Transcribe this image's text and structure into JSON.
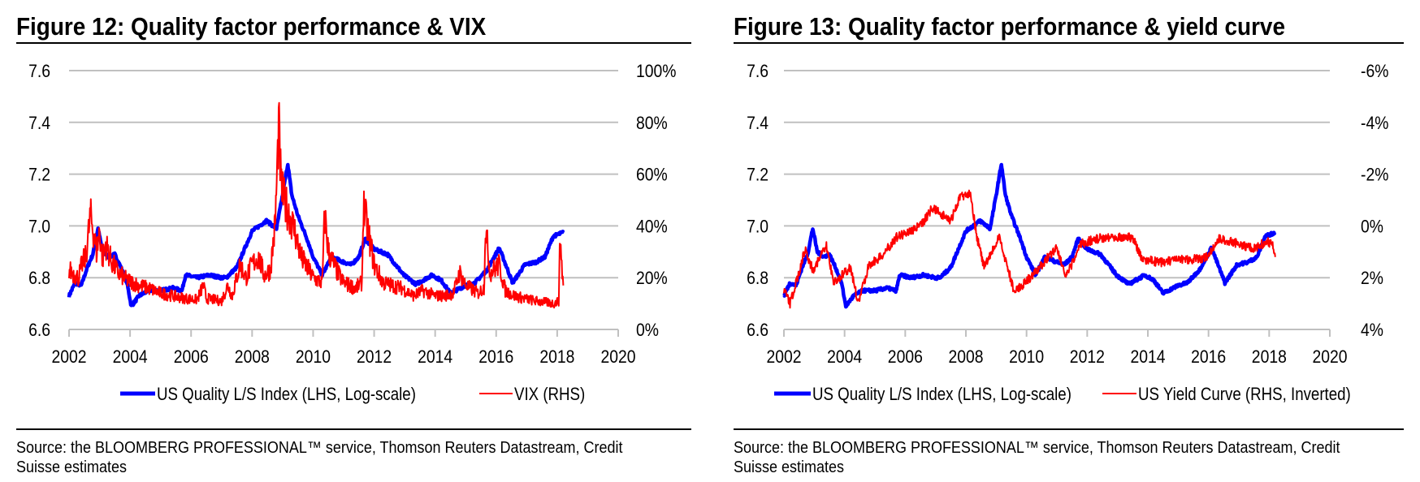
{
  "colors": {
    "quality": "#0000ff",
    "red_series": "#ff0000",
    "grid": "#c0c0c0"
  },
  "chart_data": [
    {
      "type": "line",
      "title": "Figure 12: Quality factor performance & VIX",
      "x_ticks": [
        "2002",
        "2004",
        "2006",
        "2008",
        "2010",
        "2012",
        "2014",
        "2016",
        "2018",
        "2020"
      ],
      "xlim": [
        2002,
        2020
      ],
      "y_left": {
        "ticks": [
          "6.6",
          "6.8",
          "7.0",
          "7.2",
          "7.4",
          "7.6"
        ],
        "lim": [
          6.6,
          7.6
        ],
        "inverted": false
      },
      "y_right": {
        "ticks": [
          "0%",
          "20%",
          "40%",
          "60%",
          "80%",
          "100%"
        ],
        "lim": [
          0,
          100
        ],
        "inverted": false
      },
      "legend_placement": "bottom",
      "series": [
        {
          "name": "US Quality L/S Index (LHS, Log-scale)",
          "axis": "left",
          "color": "#0000ff",
          "x": [
            2002.0,
            2002.2,
            2002.4,
            2002.6,
            2002.78,
            2002.95,
            2003.1,
            2003.3,
            2003.5,
            2003.7,
            2003.9,
            2004.04,
            2004.3,
            2004.6,
            2005.0,
            2005.4,
            2005.7,
            2005.82,
            2006.2,
            2006.6,
            2007.0,
            2007.15,
            2007.5,
            2008.0,
            2008.47,
            2008.8,
            2009.0,
            2009.17,
            2009.3,
            2009.5,
            2009.8,
            2010.0,
            2010.3,
            2010.6,
            2011.0,
            2011.25,
            2011.5,
            2011.7,
            2012.0,
            2012.44,
            2012.97,
            2013.37,
            2013.9,
            2014.2,
            2014.5,
            2015.0,
            2015.3,
            2015.7,
            2016.1,
            2016.54,
            2016.94,
            2017.3,
            2017.6,
            2017.87,
            2018.2
          ],
          "y": [
            6.73,
            6.78,
            6.77,
            6.84,
            6.89,
            6.99,
            6.9,
            6.88,
            6.89,
            6.84,
            6.78,
            6.69,
            6.73,
            6.75,
            6.75,
            6.76,
            6.75,
            6.81,
            6.8,
            6.81,
            6.8,
            6.8,
            6.84,
            6.98,
            7.02,
            6.99,
            7.12,
            7.24,
            7.12,
            7.04,
            6.95,
            6.88,
            6.81,
            6.88,
            6.86,
            6.85,
            6.88,
            6.95,
            6.91,
            6.89,
            6.81,
            6.775,
            6.81,
            6.79,
            6.74,
            6.77,
            6.78,
            6.83,
            6.915,
            6.78,
            6.85,
            6.86,
            6.88,
            6.96,
            6.975
          ]
        },
        {
          "name": "VIX (RHS)",
          "axis": "right",
          "color": "#ff0000",
          "x": [
            2002.0,
            2002.3,
            2002.45,
            2002.55,
            2002.7,
            2002.8,
            2002.9,
            2003.0,
            2003.1,
            2003.2,
            2003.4,
            2003.6,
            2003.9,
            2004.3,
            2004.6,
            2005.0,
            2005.4,
            2005.8,
            2006.2,
            2006.4,
            2006.5,
            2007.0,
            2007.2,
            2007.35,
            2007.6,
            2007.8,
            2008.0,
            2008.2,
            2008.4,
            2008.6,
            2008.75,
            2008.82,
            2008.87,
            2008.95,
            2009.05,
            2009.2,
            2009.4,
            2009.6,
            2009.8,
            2010.0,
            2010.3,
            2010.38,
            2010.5,
            2010.8,
            2011.0,
            2011.4,
            2011.6,
            2011.65,
            2011.8,
            2012.0,
            2012.3,
            2012.6,
            2012.9,
            2013.3,
            2013.6,
            2014.0,
            2014.3,
            2014.6,
            2014.8,
            2015.0,
            2015.4,
            2015.6,
            2015.65,
            2015.8,
            2016.1,
            2016.3,
            2016.6,
            2016.9,
            2017.3,
            2017.6,
            2017.9,
            2018.05,
            2018.1,
            2018.15,
            2018.2
          ],
          "y": [
            23,
            20,
            26,
            28,
            44,
            38,
            30,
            38,
            27,
            33,
            26,
            22,
            19,
            17,
            16,
            14,
            13,
            12,
            11.5,
            17,
            12,
            11,
            17,
            13,
            25,
            20,
            25,
            28,
            21,
            23,
            40,
            60,
            80,
            55,
            50,
            45,
            38,
            28,
            24,
            20,
            18,
            45,
            30,
            22,
            18,
            16,
            18,
            48,
            38,
            25,
            18,
            17,
            16,
            13,
            15,
            13,
            13,
            14,
            22,
            17,
            14,
            16,
            40,
            22,
            25,
            15,
            13,
            12,
            11,
            10.5,
            10,
            11,
            37,
            25,
            17
          ]
        }
      ],
      "source": [
        "Source: the BLOOMBERG PROFESSIONAL™ service, Thomson Reuters Datastream, Credit",
        "Suisse estimates"
      ]
    },
    {
      "type": "line",
      "title": "Figure 13: Quality factor performance & yield curve",
      "x_ticks": [
        "2002",
        "2004",
        "2006",
        "2008",
        "2010",
        "2012",
        "2014",
        "2016",
        "2018",
        "2020"
      ],
      "xlim": [
        2002,
        2020
      ],
      "y_left": {
        "ticks": [
          "6.6",
          "6.8",
          "7.0",
          "7.2",
          "7.4",
          "7.6"
        ],
        "lim": [
          6.6,
          7.6
        ],
        "inverted": false
      },
      "y_right": {
        "ticks": [
          "4%",
          "2%",
          "0%",
          "-2%",
          "-4%",
          "-6%"
        ],
        "lim": [
          4,
          -6
        ],
        "inverted": true
      },
      "legend_placement": "bottom",
      "series": [
        {
          "name": "US Quality L/S Index (LHS, Log-scale)",
          "axis": "left",
          "color": "#0000ff",
          "x": [
            2002.0,
            2002.2,
            2002.4,
            2002.6,
            2002.78,
            2002.95,
            2003.1,
            2003.3,
            2003.5,
            2003.7,
            2003.9,
            2004.04,
            2004.3,
            2004.6,
            2005.0,
            2005.4,
            2005.7,
            2005.82,
            2006.2,
            2006.6,
            2007.0,
            2007.15,
            2007.5,
            2008.0,
            2008.47,
            2008.8,
            2009.0,
            2009.17,
            2009.3,
            2009.5,
            2009.8,
            2010.0,
            2010.3,
            2010.6,
            2011.0,
            2011.25,
            2011.5,
            2011.7,
            2012.0,
            2012.44,
            2012.97,
            2013.37,
            2013.9,
            2014.2,
            2014.5,
            2015.0,
            2015.3,
            2015.7,
            2016.1,
            2016.54,
            2016.94,
            2017.3,
            2017.6,
            2017.87,
            2018.2
          ],
          "y": [
            6.73,
            6.78,
            6.77,
            6.84,
            6.89,
            6.99,
            6.9,
            6.88,
            6.89,
            6.84,
            6.78,
            6.69,
            6.73,
            6.75,
            6.75,
            6.76,
            6.75,
            6.81,
            6.8,
            6.81,
            6.8,
            6.8,
            6.84,
            6.98,
            7.02,
            6.99,
            7.12,
            7.24,
            7.12,
            7.04,
            6.95,
            6.88,
            6.81,
            6.88,
            6.86,
            6.85,
            6.88,
            6.95,
            6.91,
            6.89,
            6.81,
            6.775,
            6.81,
            6.79,
            6.74,
            6.77,
            6.78,
            6.83,
            6.915,
            6.78,
            6.85,
            6.86,
            6.88,
            6.96,
            6.975
          ]
        },
        {
          "name": "US Yield Curve (RHS, Inverted)",
          "axis": "right",
          "color": "#ff0000",
          "x": [
            2002.0,
            2002.2,
            2002.45,
            2002.7,
            2002.95,
            2003.4,
            2003.65,
            2004.2,
            2004.45,
            2004.8,
            2005.2,
            2005.7,
            2006.5,
            2006.9,
            2007.5,
            2007.8,
            2008.15,
            2008.35,
            2008.6,
            2009.1,
            2009.6,
            2010.3,
            2011.0,
            2011.3,
            2011.8,
            2012.3,
            2012.8,
            2013.5,
            2013.8,
            2014.4,
            2015.3,
            2015.9,
            2016.35,
            2017.05,
            2017.5,
            2017.9,
            2018.1,
            2018.2
          ],
          "y": [
            2.5,
            3.0,
            2.0,
            0.9,
            1.7,
            0.8,
            2.2,
            1.6,
            3.0,
            1.5,
            1.2,
            0.45,
            0.0,
            -0.7,
            -0.2,
            -1.1,
            -1.3,
            0.36,
            1.6,
            0.45,
            2.56,
            1.8,
            0.8,
            2.0,
            0.7,
            0.5,
            0.4,
            0.45,
            1.3,
            1.4,
            1.3,
            1.25,
            0.5,
            0.7,
            0.9,
            0.6,
            0.7,
            1.2
          ]
        }
      ],
      "source": [
        "Source: the BLOOMBERG PROFESSIONAL™ service, Thomson Reuters Datastream, Credit",
        "Suisse estimates"
      ]
    }
  ]
}
